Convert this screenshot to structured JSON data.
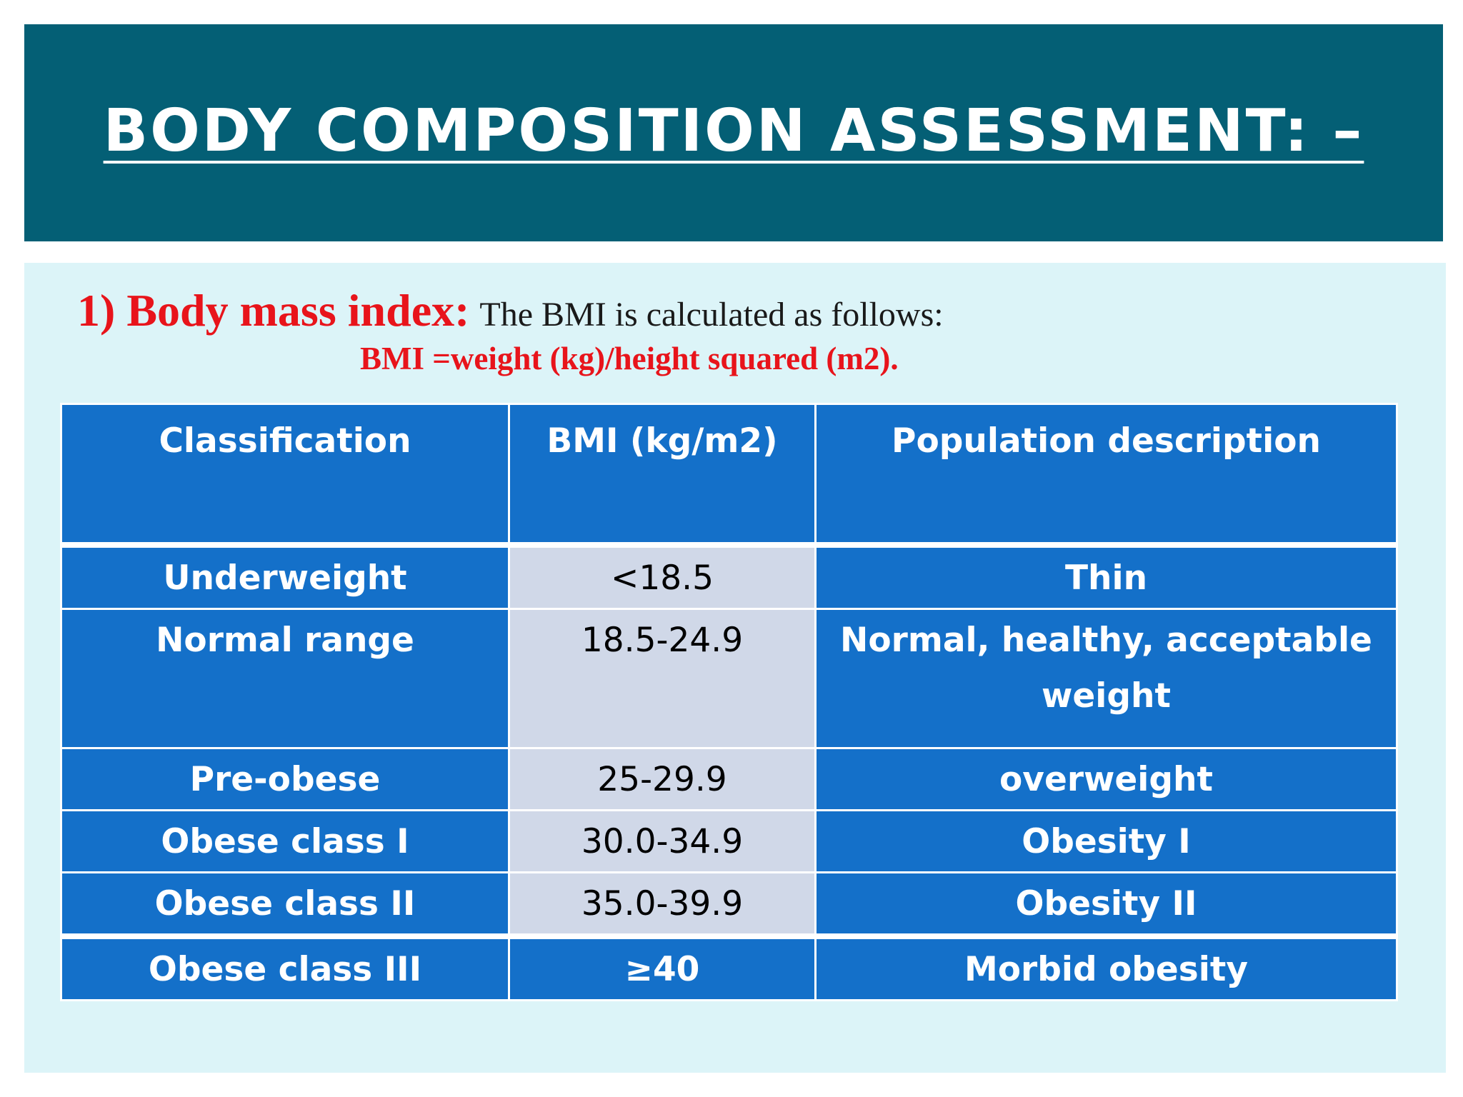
{
  "header": {
    "title": "BODY COMPOSITION ASSESSMENT: –"
  },
  "section": {
    "heading": "1) Body mass index:",
    "intro": "The BMI is calculated as follows:",
    "formula": "BMI =weight (kg)/height squared (m2)."
  },
  "table": {
    "columns": [
      "Classification",
      "BMI (kg/m2)",
      "Population description"
    ],
    "rows": [
      {
        "classification": "Underweight",
        "bmi": "<18.5",
        "description": "Thin"
      },
      {
        "classification": "Normal range",
        "bmi": "18.5-24.9",
        "description": "Normal, healthy, acceptable weight"
      },
      {
        "classification": "Pre-obese",
        "bmi": "25-29.9",
        "description": "overweight"
      },
      {
        "classification": "Obese class I",
        "bmi": "30.0-34.9",
        "description": "Obesity I"
      },
      {
        "classification": "Obese class II",
        "bmi": "35.0-39.9",
        "description": "Obesity II"
      },
      {
        "classification": "Obese class III",
        "bmi": "≥40",
        "description": "Morbid obesity"
      }
    ]
  },
  "colors": {
    "title_bar": "#045f75",
    "content_bg": "#dcf4f8",
    "table_blue": "#1470c9",
    "table_light": "#d0d8e8",
    "accent_red": "#e8141b"
  }
}
